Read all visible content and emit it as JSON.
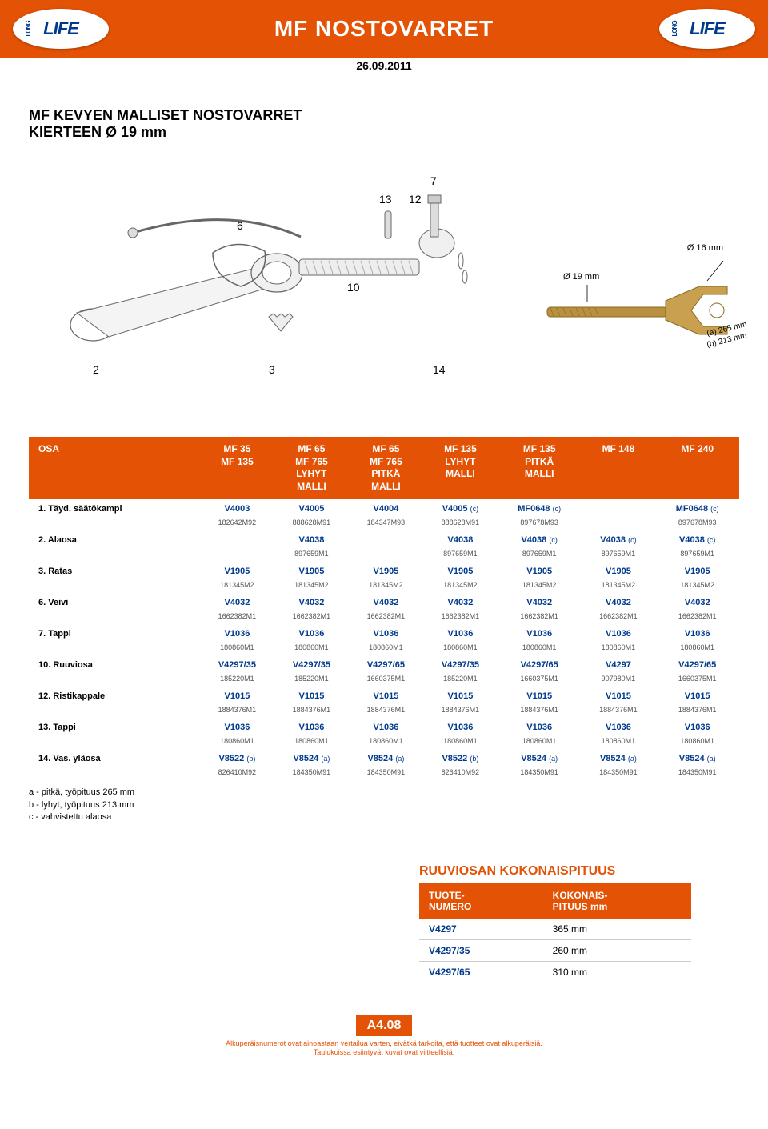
{
  "header": {
    "logo_text": "LIFE",
    "logo_prefix": "LONG",
    "title": "MF NOSTOVARRET",
    "date": "26.09.2011"
  },
  "section": {
    "title_line1": "MF KEVYEN MALLISET NOSTOVARRET",
    "title_line2": "KIERTEEN Ø 19 mm"
  },
  "diagram": {
    "labels": {
      "n2": "2",
      "n3": "3",
      "n6": "6",
      "n7": "7",
      "n10": "10",
      "n12": "12",
      "n13": "13",
      "n14": "14"
    },
    "dims": {
      "d16": "Ø 16 mm",
      "d19": "Ø 19 mm",
      "a": "(a) 265 mm",
      "b": "(b) 213 mm"
    }
  },
  "table": {
    "header_osa": "OSA",
    "columns": [
      "MF 35\nMF 135",
      "MF 65\nMF 765\nLYHYT\nMALLI",
      "MF 65\nMF 765\nPITKÄ\nMALLI",
      "MF 135\nLYHYT\nMALLI",
      "MF 135\nPITKÄ\nMALLI",
      "MF 148",
      "MF 240"
    ],
    "rows": [
      {
        "label": "1. Täyd. säätökampi",
        "cells": [
          {
            "v": "V4003",
            "s": "",
            "r": "182642M92"
          },
          {
            "v": "V4005",
            "s": "",
            "r": "888628M91"
          },
          {
            "v": "V4004",
            "s": "",
            "r": "184347M93"
          },
          {
            "v": "V4005",
            "s": "(c)",
            "r": "888628M91"
          },
          {
            "v": "MF0648",
            "s": "(c)",
            "r": "897678M93"
          },
          {
            "v": "",
            "s": "",
            "r": ""
          },
          {
            "v": "MF0648",
            "s": "(c)",
            "r": "897678M93"
          }
        ]
      },
      {
        "label": "2. Alaosa",
        "cells": [
          {
            "v": "",
            "s": "",
            "r": ""
          },
          {
            "v": "V4038",
            "s": "",
            "r": "897659M1"
          },
          {
            "v": "",
            "s": "",
            "r": ""
          },
          {
            "v": "V4038",
            "s": "",
            "r": "897659M1"
          },
          {
            "v": "V4038",
            "s": "(c)",
            "r": "897659M1"
          },
          {
            "v": "V4038",
            "s": "(c)",
            "r": "897659M1"
          },
          {
            "v": "V4038",
            "s": "(c)",
            "r": "897659M1"
          }
        ]
      },
      {
        "label": "3. Ratas",
        "cells": [
          {
            "v": "V1905",
            "s": "",
            "r": "181345M2"
          },
          {
            "v": "V1905",
            "s": "",
            "r": "181345M2"
          },
          {
            "v": "V1905",
            "s": "",
            "r": "181345M2"
          },
          {
            "v": "V1905",
            "s": "",
            "r": "181345M2"
          },
          {
            "v": "V1905",
            "s": "",
            "r": "181345M2"
          },
          {
            "v": "V1905",
            "s": "",
            "r": "181345M2"
          },
          {
            "v": "V1905",
            "s": "",
            "r": "181345M2"
          }
        ]
      },
      {
        "label": "6. Veivi",
        "cells": [
          {
            "v": "V4032",
            "s": "",
            "r": "1662382M1"
          },
          {
            "v": "V4032",
            "s": "",
            "r": "1662382M1"
          },
          {
            "v": "V4032",
            "s": "",
            "r": "1662382M1"
          },
          {
            "v": "V4032",
            "s": "",
            "r": "1662382M1"
          },
          {
            "v": "V4032",
            "s": "",
            "r": "1662382M1"
          },
          {
            "v": "V4032",
            "s": "",
            "r": "1662382M1"
          },
          {
            "v": "V4032",
            "s": "",
            "r": "1662382M1"
          }
        ]
      },
      {
        "label": "7. Tappi",
        "cells": [
          {
            "v": "V1036",
            "s": "",
            "r": "180860M1"
          },
          {
            "v": "V1036",
            "s": "",
            "r": "180860M1"
          },
          {
            "v": "V1036",
            "s": "",
            "r": "180860M1"
          },
          {
            "v": "V1036",
            "s": "",
            "r": "180860M1"
          },
          {
            "v": "V1036",
            "s": "",
            "r": "180860M1"
          },
          {
            "v": "V1036",
            "s": "",
            "r": "180860M1"
          },
          {
            "v": "V1036",
            "s": "",
            "r": "180860M1"
          }
        ]
      },
      {
        "label": "10. Ruuviosa",
        "cells": [
          {
            "v": "V4297/35",
            "s": "",
            "r": "185220M1"
          },
          {
            "v": "V4297/35",
            "s": "",
            "r": "185220M1"
          },
          {
            "v": "V4297/65",
            "s": "",
            "r": "1660375M1"
          },
          {
            "v": "V4297/35",
            "s": "",
            "r": "185220M1"
          },
          {
            "v": "V4297/65",
            "s": "",
            "r": "1660375M1"
          },
          {
            "v": "V4297",
            "s": "",
            "r": "907980M1"
          },
          {
            "v": "V4297/65",
            "s": "",
            "r": "1660375M1"
          }
        ]
      },
      {
        "label": "12. Ristikappale",
        "cells": [
          {
            "v": "V1015",
            "s": "",
            "r": "1884376M1"
          },
          {
            "v": "V1015",
            "s": "",
            "r": "1884376M1"
          },
          {
            "v": "V1015",
            "s": "",
            "r": "1884376M1"
          },
          {
            "v": "V1015",
            "s": "",
            "r": "1884376M1"
          },
          {
            "v": "V1015",
            "s": "",
            "r": "1884376M1"
          },
          {
            "v": "V1015",
            "s": "",
            "r": "1884376M1"
          },
          {
            "v": "V1015",
            "s": "",
            "r": "1884376M1"
          }
        ]
      },
      {
        "label": "13. Tappi",
        "cells": [
          {
            "v": "V1036",
            "s": "",
            "r": "180860M1"
          },
          {
            "v": "V1036",
            "s": "",
            "r": "180860M1"
          },
          {
            "v": "V1036",
            "s": "",
            "r": "180860M1"
          },
          {
            "v": "V1036",
            "s": "",
            "r": "180860M1"
          },
          {
            "v": "V1036",
            "s": "",
            "r": "180860M1"
          },
          {
            "v": "V1036",
            "s": "",
            "r": "180860M1"
          },
          {
            "v": "V1036",
            "s": "",
            "r": "180860M1"
          }
        ]
      },
      {
        "label": "14. Vas. yläosa",
        "cells": [
          {
            "v": "V8522",
            "s": "(b)",
            "r": "826410M92"
          },
          {
            "v": "V8524",
            "s": "(a)",
            "r": "184350M91"
          },
          {
            "v": "V8524",
            "s": "(a)",
            "r": "184350M91"
          },
          {
            "v": "V8522",
            "s": "(b)",
            "r": "826410M92"
          },
          {
            "v": "V8524",
            "s": "(a)",
            "r": "184350M91"
          },
          {
            "v": "V8524",
            "s": "(a)",
            "r": "184350M91"
          },
          {
            "v": "V8524",
            "s": "(a)",
            "r": "184350M91"
          }
        ]
      }
    ],
    "notes": [
      "a - pitkä, työpituus 265 mm",
      "b - lyhyt, työpituus 213 mm",
      "c - vahvistettu alaosa"
    ]
  },
  "lower": {
    "title": "RUUVIOSAN KOKONAISPITUUS",
    "col1": "TUOTE-\nNUMERO",
    "col2": "KOKONAIS-\nPITUUS mm",
    "rows": [
      {
        "code": "V4297",
        "len": "365 mm"
      },
      {
        "code": "V4297/35",
        "len": "260 mm"
      },
      {
        "code": "V4297/65",
        "len": "310 mm"
      }
    ]
  },
  "footer": {
    "page": "A4.08",
    "line1": "Alkuperäisnumerot ovat ainoastaan vertailua varten, eivätkä tarkoita, että tuotteet ovat alkuperäisiä.",
    "line2": "Taulukoissa esiintyvät kuvat ovat viitteellisiä."
  },
  "colors": {
    "brand_orange": "#e35205",
    "brand_blue": "#003a8c",
    "text_gray": "#555555",
    "border_gray": "#cccccc",
    "background": "#ffffff"
  }
}
